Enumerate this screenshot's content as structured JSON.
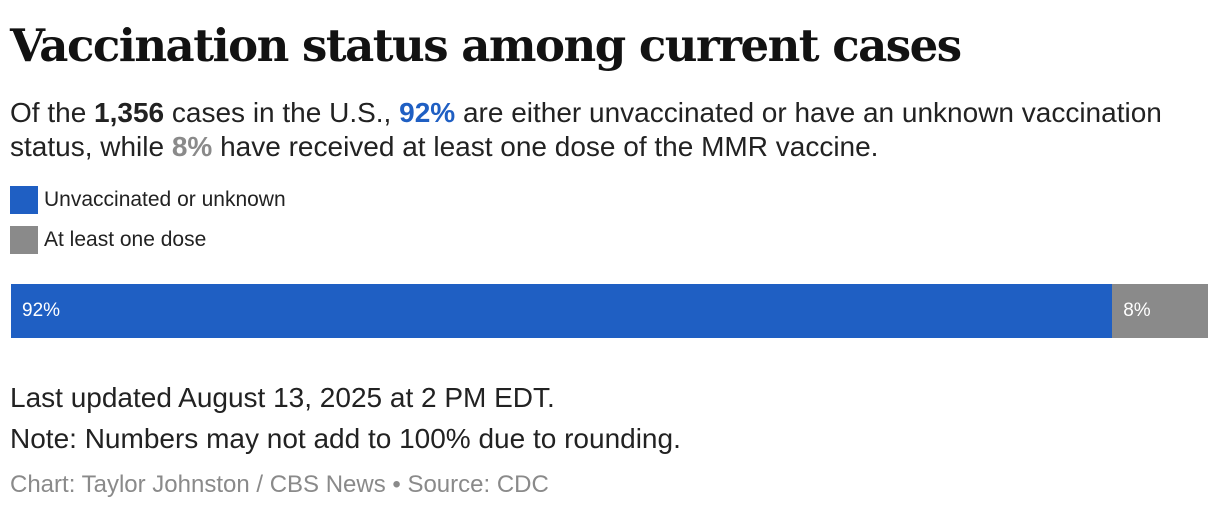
{
  "title": "Vaccination status among current cases",
  "subtitle": {
    "part1": "Of the ",
    "cases": "1,356",
    "part2": " cases in the U.S., ",
    "pct_unvax": "92%",
    "part3": " are either unvaccinated or have an unknown vaccination status, while ",
    "pct_dose": "8%",
    "part4": " have received at least one dose of the MMR vaccine."
  },
  "colors": {
    "unvaccinated": "#1f5fc3",
    "at_least_one_dose": "#8a8a8a"
  },
  "chart_data": {
    "type": "bar",
    "orientation": "horizontal",
    "stacked": true,
    "unit": "%",
    "legend_placement": "top-left",
    "series": [
      {
        "name": "Unvaccinated or unknown",
        "value": 92,
        "label": "92%",
        "color": "#1f5fc3"
      },
      {
        "name": "At least one dose",
        "value": 8,
        "label": "8%",
        "color": "#8a8a8a"
      }
    ]
  },
  "footer": {
    "updated": "Last updated August 13, 2025 at 2 PM EDT.",
    "note": "Note: Numbers may not add to 100% due to rounding.",
    "credit": "Chart: Taylor Johnston / CBS News • Source: CDC"
  }
}
